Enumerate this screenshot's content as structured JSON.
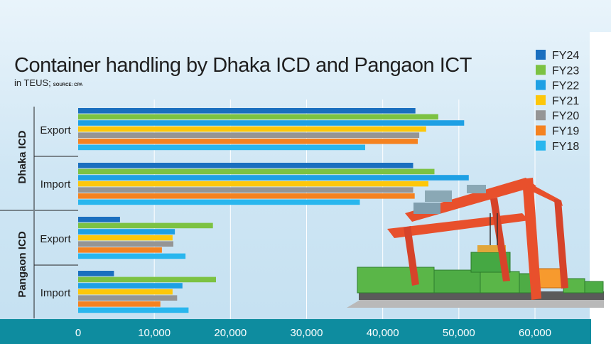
{
  "chart_data": {
    "type": "bar",
    "orientation": "horizontal",
    "title": "Container handling by Dhaka ICD and Pangaon ICT",
    "subtitle": "in TEUS;",
    "source": "SOURCE: CPA",
    "groups": [
      {
        "name": "Dhaka ICD",
        "categories": [
          "Export",
          "Import"
        ]
      },
      {
        "name": "Pangaon ICD",
        "categories": [
          "Export",
          "Import"
        ]
      }
    ],
    "series": [
      {
        "name": "FY24",
        "color": "#1a6fbf",
        "values": [
          44300,
          44000,
          5500,
          4700
        ]
      },
      {
        "name": "FY23",
        "color": "#7cc242",
        "values": [
          47300,
          46800,
          17700,
          18100
        ]
      },
      {
        "name": "FY22",
        "color": "#1ea0e4",
        "values": [
          50700,
          51300,
          12700,
          13700
        ]
      },
      {
        "name": "FY21",
        "color": "#fdc70a",
        "values": [
          45700,
          46000,
          12400,
          12400
        ]
      },
      {
        "name": "FY20",
        "color": "#959595",
        "values": [
          44800,
          44000,
          12500,
          13000
        ]
      },
      {
        "name": "FY19",
        "color": "#f58220",
        "values": [
          44600,
          44200,
          11000,
          10800
        ]
      },
      {
        "name": "FY18",
        "color": "#29b6ee",
        "values": [
          37700,
          37000,
          14100,
          14500
        ]
      }
    ],
    "xlim": [
      0,
      63000
    ],
    "xticks": [
      0,
      10000,
      20000,
      30000,
      40000,
      50000,
      60000
    ],
    "xtick_labels": [
      "0",
      "10,000",
      "20,000",
      "30,000",
      "40,000",
      "50,000",
      "60,000"
    ],
    "grid": true,
    "legend_position": "top-right"
  },
  "colors": {
    "background": "#cfe6f4",
    "axis_band": "#0e8c9f",
    "grid": "#ffffff"
  }
}
